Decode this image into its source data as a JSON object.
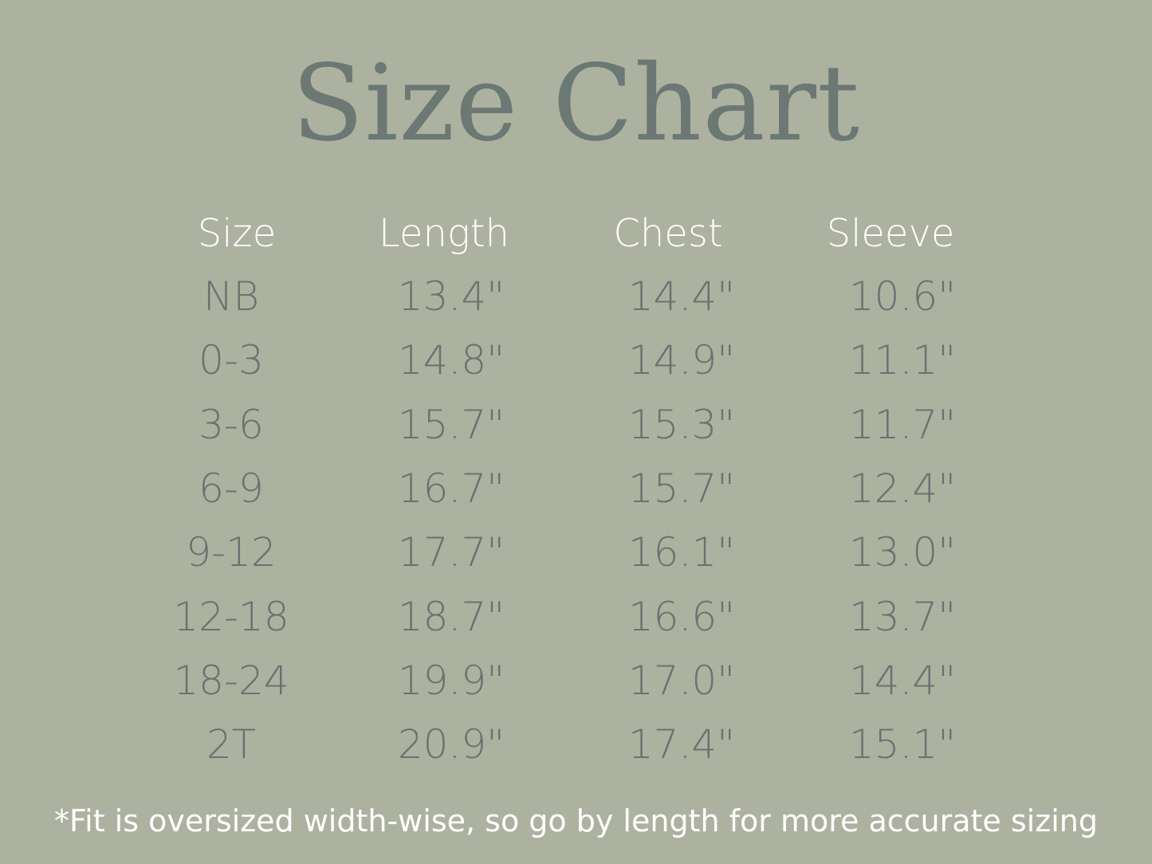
{
  "title": "Size Chart",
  "table": {
    "headers": [
      "Size",
      "Length",
      "Chest",
      "Sleeve"
    ],
    "rows": [
      [
        "NB",
        "13.4\"",
        "14.4\"",
        "10.6\""
      ],
      [
        "0-3",
        "14.8\"",
        "14.9\"",
        "11.1\""
      ],
      [
        "3-6",
        "15.7\"",
        "15.3\"",
        "11.7\""
      ],
      [
        "6-9",
        "16.7\"",
        "15.7\"",
        "12.4\""
      ],
      [
        "9-12",
        "17.7\"",
        "16.1\"",
        "13.0\""
      ],
      [
        "12-18",
        "18.7\"",
        "16.6\"",
        "13.7\""
      ],
      [
        "18-24",
        "19.9\"",
        "17.0\"",
        "14.4\""
      ],
      [
        "2T",
        "20.9\"",
        "17.4\"",
        "15.1\""
      ]
    ]
  },
  "footnote": "*Fit is oversized width-wise, so go by length for more accurate sizing",
  "colors": {
    "background": "#adb1a0",
    "title": "#6b7873",
    "header": "#ffffff",
    "values": "#67736f"
  }
}
